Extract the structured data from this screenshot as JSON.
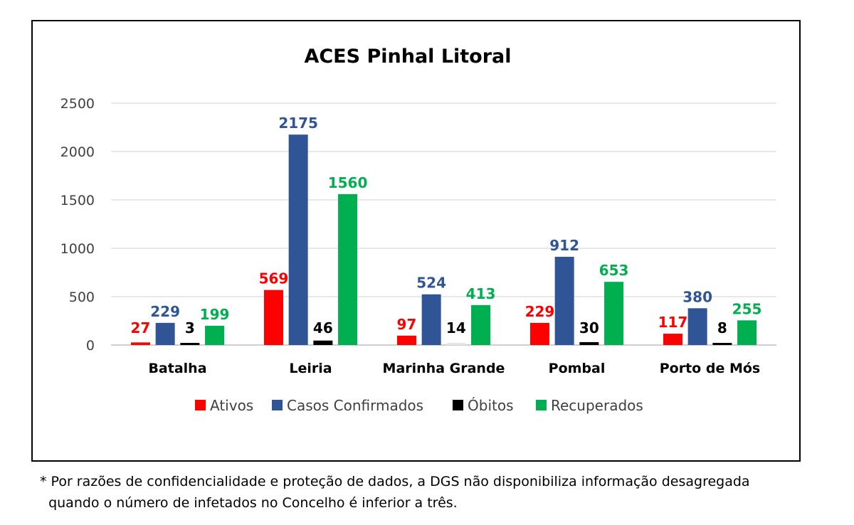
{
  "chart_data": {
    "type": "bar",
    "title": "ACES Pinhal Litoral",
    "xlabel": "",
    "ylabel": "",
    "ylim": [
      0,
      2500
    ],
    "yticks": [
      0,
      500,
      1000,
      1500,
      2000,
      2500
    ],
    "grid": true,
    "legend_position": "bottom",
    "categories": [
      "Batalha",
      "Leiria",
      "Marinha Grande",
      "Pombal",
      "Porto de Mós"
    ],
    "series": [
      {
        "name": "Ativos",
        "color": "#ff0000",
        "label_color": "#ff0000",
        "values": [
          27,
          569,
          97,
          229,
          117
        ]
      },
      {
        "name": "Casos Confirmados",
        "color": "#2f5597",
        "label_color": "#2f5597",
        "values": [
          229,
          2175,
          524,
          912,
          380
        ]
      },
      {
        "name": "Óbitos",
        "color": "#000000",
        "label_color": "#000000",
        "values": [
          3,
          46,
          14,
          30,
          8
        ]
      },
      {
        "name": "Recuperados",
        "color": "#00b050",
        "label_color": "#00b050",
        "values": [
          199,
          1560,
          413,
          653,
          255
        ]
      }
    ]
  },
  "footnote": {
    "line1": "* Por razões de confidencialidade e proteção de dados, a DGS não disponibiliza informação desagregada",
    "line2": "  quando o número de infetados no Concelho é inferior a três."
  }
}
